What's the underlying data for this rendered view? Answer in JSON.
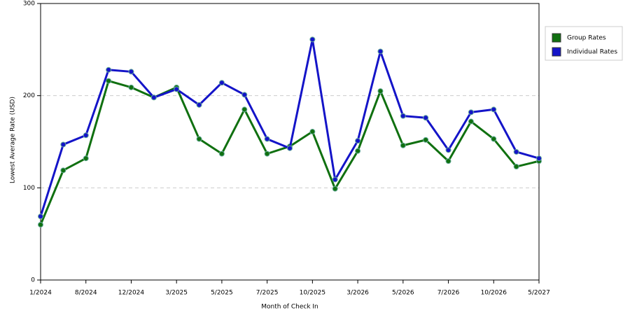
{
  "chart_data": {
    "type": "line",
    "x_label": "Month of Check In",
    "y_label": "Lowest Average Rate (USD)",
    "categories": [
      "1/2024",
      null,
      "8/2024",
      null,
      "12/2024",
      null,
      "3/2025",
      null,
      "5/2025",
      null,
      "7/2025",
      null,
      "10/2025",
      null,
      "3/2026",
      null,
      "5/2026",
      null,
      "7/2026",
      null,
      "10/2026",
      null,
      "5/2027"
    ],
    "series": [
      {
        "name": "Group Rates",
        "color": "#107010",
        "values": [
          60,
          119,
          132,
          216,
          209,
          198,
          209,
          153,
          137,
          185,
          137,
          145,
          161,
          99,
          140,
          205,
          146,
          152,
          129,
          172,
          153,
          123,
          129
        ]
      },
      {
        "name": "Individual Rates",
        "color": "#1414c8",
        "values": [
          69,
          147,
          157,
          228,
          226,
          198,
          207,
          190,
          214,
          201,
          153,
          143,
          261,
          109,
          151,
          248,
          178,
          176,
          141,
          182,
          185,
          139,
          132
        ]
      }
    ],
    "ylim": [
      0,
      300
    ],
    "yticks": [
      0,
      100,
      200,
      300
    ],
    "grid": true,
    "legend": "right"
  }
}
